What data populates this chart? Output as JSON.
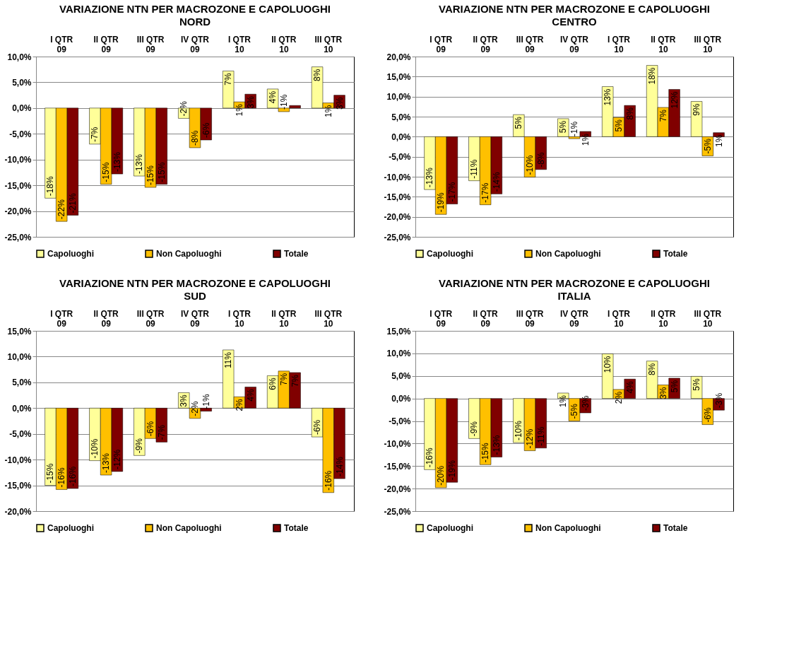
{
  "chart_data": [
    {
      "type": "bar",
      "title": "VARIAZIONE NTN PER MACROZONE E CAPOLUOGHI",
      "subtitle": "NORD",
      "categories": [
        "I QTR\n09",
        "II QTR\n09",
        "III QTR\n09",
        "IV QTR\n09",
        "I QTR\n10",
        "II QTR\n10",
        "III QTR\n10"
      ],
      "series": [
        {
          "name": "Capoluoghi",
          "color": "#ffff99",
          "values": [
            -17.5,
            -7.0,
            -13.2,
            -2.0,
            7.2,
            3.7,
            8.0
          ],
          "value_labels": [
            "-18%",
            "-7%",
            "-13%",
            "-2%",
            "7%",
            "4%",
            "8%"
          ]
        },
        {
          "name": "Non Capoluoghi",
          "color": "#ffc000",
          "values": [
            -22.0,
            -14.8,
            -15.4,
            -7.7,
            1.2,
            -0.7,
            1.0
          ],
          "value_labels": [
            "-22%",
            "-15%",
            "-15%",
            "-8%",
            "1%",
            "-1%",
            "1%"
          ]
        },
        {
          "name": "Totale",
          "color": "#800000",
          "values": [
            -20.8,
            -12.8,
            -14.8,
            -6.2,
            2.7,
            0.5,
            2.5
          ],
          "value_labels": [
            "-21%",
            "-13%",
            "-15%",
            "-6%",
            "3%",
            null,
            "3%"
          ]
        }
      ],
      "ylim": [
        -25,
        10
      ],
      "yticks": [
        {
          "value": -25,
          "label": "-25,0%"
        },
        {
          "value": -20,
          "label": "-20,0%"
        },
        {
          "value": -15,
          "label": "-15,0%"
        },
        {
          "value": -10,
          "label": "-10,0%"
        },
        {
          "value": -5,
          "label": "-5,0%"
        },
        {
          "value": 0,
          "label": "0,0%"
        },
        {
          "value": 5,
          "label": "5,0%"
        },
        {
          "value": 10,
          "label": "10,0%"
        }
      ],
      "grid": "y",
      "legend": "bottom"
    },
    {
      "type": "bar",
      "title": "VARIAZIONE NTN PER MACROZONE E CAPOLUOGHI",
      "subtitle": "CENTRO",
      "categories": [
        "I QTR\n09",
        "II QTR\n09",
        "III QTR\n09",
        "IV QTR\n09",
        "I QTR\n10",
        "II QTR\n10",
        "III QTR\n10"
      ],
      "series": [
        {
          "name": "Capoluoghi",
          "color": "#ffff99",
          "values": [
            -13.2,
            -11.0,
            5.5,
            4.5,
            12.5,
            17.8,
            8.8
          ],
          "value_labels": [
            "-13%",
            "-11%",
            "5%",
            "5%",
            "13%",
            "18%",
            "9%"
          ]
        },
        {
          "name": "Non Capoluoghi",
          "color": "#ffc000",
          "values": [
            -19.4,
            -17.0,
            -10.1,
            -0.5,
            4.8,
            7.3,
            -4.8
          ],
          "value_labels": [
            "-19%",
            "-17%",
            "-10%",
            "-1%",
            "5%",
            "7%",
            "-5%"
          ]
        },
        {
          "name": "Totale",
          "color": "#800000",
          "values": [
            -16.8,
            -14.3,
            -8.2,
            1.3,
            7.8,
            11.8,
            1.0
          ],
          "value_labels": [
            "-17%",
            "-14%",
            "-8%",
            "1%",
            "8%",
            "12%",
            "1%"
          ]
        }
      ],
      "ylim": [
        -25,
        20
      ],
      "yticks": [
        {
          "value": -25,
          "label": "-25,0%"
        },
        {
          "value": -20,
          "label": "-20,0%"
        },
        {
          "value": -15,
          "label": "-15,0%"
        },
        {
          "value": -10,
          "label": "-10,0%"
        },
        {
          "value": -5,
          "label": "-5,0%"
        },
        {
          "value": 0,
          "label": "0,0%"
        },
        {
          "value": 5,
          "label": "5,0%"
        },
        {
          "value": 10,
          "label": "10,0%"
        },
        {
          "value": 15,
          "label": "15,0%"
        },
        {
          "value": 20,
          "label": "20,0%"
        }
      ],
      "grid": "y",
      "legend": "bottom"
    },
    {
      "type": "bar",
      "title": "VARIAZIONE NTN PER MACROZONE E CAPOLUOGHI",
      "subtitle": "SUD",
      "categories": [
        "I QTR\n09",
        "II QTR\n09",
        "III QTR\n09",
        "IV QTR\n09",
        "I QTR\n10",
        "II QTR\n10",
        "III QTR\n10"
      ],
      "series": [
        {
          "name": "Capoluoghi",
          "color": "#ffff99",
          "values": [
            -15.0,
            -10.2,
            -9.2,
            3.0,
            11.3,
            6.3,
            -5.6
          ],
          "value_labels": [
            "-15%",
            "-10%",
            "-9%",
            "3%",
            "11%",
            "6%",
            "-6%"
          ]
        },
        {
          "name": "Non Capoluoghi",
          "color": "#ffc000",
          "values": [
            -15.8,
            -13.0,
            -5.9,
            -2.0,
            2.2,
            7.2,
            -16.4
          ],
          "value_labels": [
            "-16%",
            "-13%",
            "-6%",
            "-2%",
            "2%",
            "7%",
            "-16%"
          ]
        },
        {
          "name": "Totale",
          "color": "#800000",
          "values": [
            -15.6,
            -12.3,
            -6.6,
            -0.6,
            4.1,
            6.9,
            -13.7
          ],
          "value_labels": [
            "-16%",
            "-12%",
            "-7%",
            "-1%",
            "4%",
            "7%",
            "-14%"
          ]
        }
      ],
      "ylim": [
        -20,
        15
      ],
      "yticks": [
        {
          "value": -20,
          "label": "-20,0%"
        },
        {
          "value": -15,
          "label": "-15,0%"
        },
        {
          "value": -10,
          "label": "-10,0%"
        },
        {
          "value": -5,
          "label": "-5,0%"
        },
        {
          "value": 0,
          "label": "0,0%"
        },
        {
          "value": 5,
          "label": "5,0%"
        },
        {
          "value": 10,
          "label": "10,0%"
        },
        {
          "value": 15,
          "label": "15,0%"
        }
      ],
      "grid": "y",
      "legend": "bottom"
    },
    {
      "type": "bar",
      "title": "VARIAZIONE NTN PER MACROZONE E CAPOLUOGHI",
      "subtitle": "ITALIA",
      "categories": [
        "I QTR\n09",
        "II QTR\n09",
        "III QTR\n09",
        "IV QTR\n09",
        "I QTR\n10",
        "II QTR\n10",
        "III QTR\n10"
      ],
      "series": [
        {
          "name": "Capoluoghi",
          "color": "#ffff99",
          "values": [
            -15.8,
            -8.9,
            -9.8,
            1.2,
            9.9,
            8.3,
            4.9
          ],
          "value_labels": [
            "-16%",
            "-9%",
            "-10%",
            "1%",
            "10%",
            "8%",
            "5%"
          ]
        },
        {
          "name": "Non Capoluoghi",
          "color": "#ffc000",
          "values": [
            -19.8,
            -14.7,
            -11.6,
            -5.0,
            2.0,
            3.0,
            -5.8
          ],
          "value_labels": [
            "-20%",
            "-15%",
            "-12%",
            "-5%",
            "2%",
            "3%",
            "-6%"
          ]
        },
        {
          "name": "Totale",
          "color": "#800000",
          "values": [
            -18.6,
            -13.0,
            -11.0,
            -3.2,
            4.3,
            4.5,
            -2.6
          ],
          "value_labels": [
            "-19%",
            "-13%",
            "-11%",
            "-3%",
            "4%",
            "5%",
            "-3%"
          ]
        }
      ],
      "ylim": [
        -25,
        15
      ],
      "yticks": [
        {
          "value": -25,
          "label": "-25,0%"
        },
        {
          "value": -20,
          "label": "-20,0%"
        },
        {
          "value": -15,
          "label": "-15,0%"
        },
        {
          "value": -10,
          "label": "-10,0%"
        },
        {
          "value": -5,
          "label": "-5,0%"
        },
        {
          "value": 0,
          "label": "0,0%"
        },
        {
          "value": 5,
          "label": "5,0%"
        },
        {
          "value": 10,
          "label": "10,0%"
        },
        {
          "value": 15,
          "label": "15,0%"
        }
      ],
      "grid": "y",
      "legend": "bottom"
    }
  ]
}
